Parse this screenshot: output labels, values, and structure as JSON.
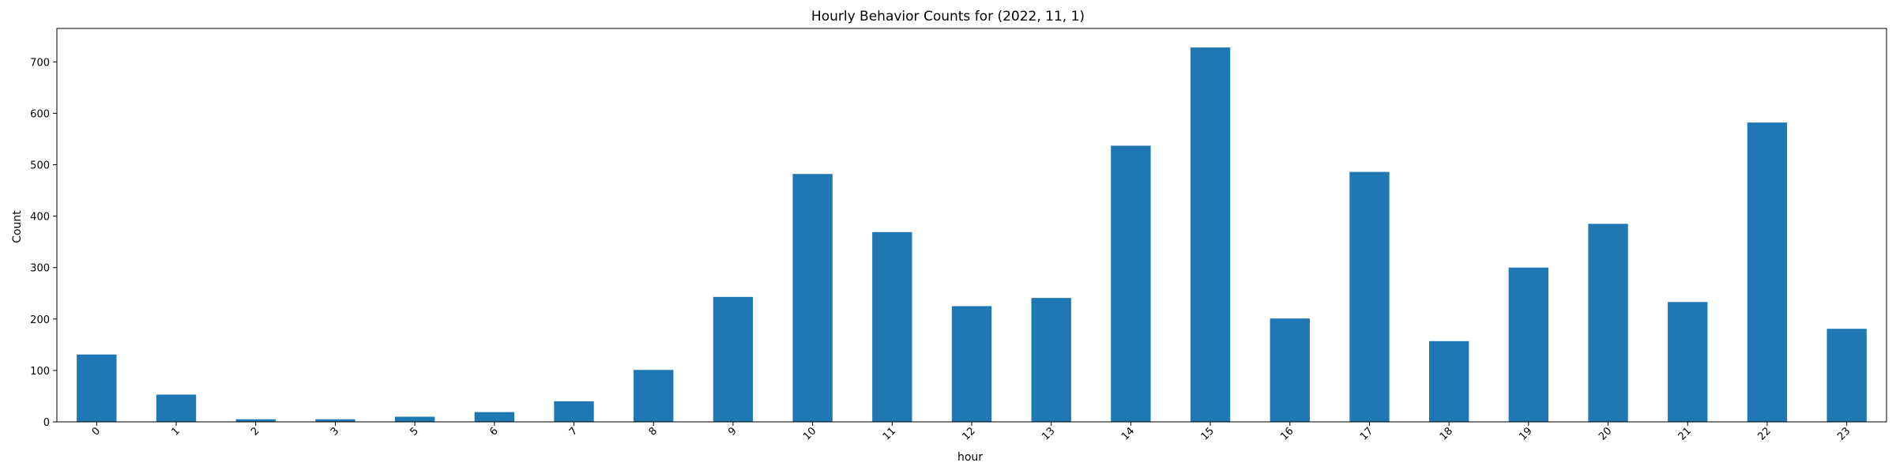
{
  "chart_data": {
    "type": "bar",
    "title": "Hourly Behavior Counts for (2022, 11, 1)",
    "xlabel": "hour",
    "ylabel": "Count",
    "categories": [
      "0",
      "1",
      "2",
      "3",
      "5",
      "6",
      "7",
      "8",
      "9",
      "10",
      "11",
      "12",
      "13",
      "14",
      "15",
      "16",
      "17",
      "18",
      "19",
      "20",
      "21",
      "22",
      "23"
    ],
    "values": [
      131,
      53,
      5,
      5,
      10,
      19,
      40,
      101,
      243,
      482,
      369,
      225,
      241,
      537,
      728,
      201,
      486,
      157,
      300,
      385,
      233,
      582,
      181
    ],
    "ylim": [
      0,
      765
    ],
    "yticks": [
      0,
      100,
      200,
      300,
      400,
      500,
      600,
      700
    ],
    "grid": false,
    "legend": "none",
    "xtick_rotation": 45,
    "colors": {
      "bar": "#1f77b4",
      "axis": "#000000",
      "background": "#ffffff"
    }
  }
}
